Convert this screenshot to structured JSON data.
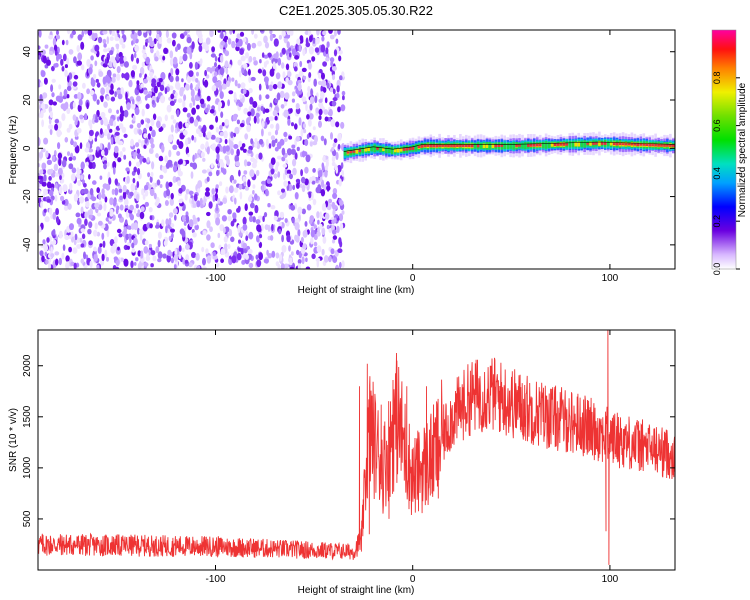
{
  "title": "C2E1.2025.305.05.30.R22",
  "colors": {
    "snr_line": "#ee3333",
    "scatter_fill": "#6a0ee6",
    "ridge_core": "#e8303a"
  },
  "chart_data": [
    {
      "type": "heatmap",
      "xlabel": "Height of straight line (km)",
      "ylabel": "Frequency (Hz)",
      "xlim": [
        -190,
        133
      ],
      "ylim": [
        -50,
        49
      ],
      "xticks": [
        -100,
        0,
        100
      ],
      "yticks": [
        -40,
        -20,
        0,
        20,
        40
      ],
      "colorbar": {
        "label": "Normalized spectral amplitude",
        "range": [
          0,
          1
        ],
        "ticks": [
          "0.0",
          "0.2",
          "0.4",
          "0.6",
          "0.8"
        ]
      },
      "noise_region_x": [
        -190,
        -35
      ],
      "ridge": {
        "x_start": -35,
        "x_end": 133,
        "freq_hz": [
          {
            "x": -35,
            "y": -2
          },
          {
            "x": -20,
            "y": 0
          },
          {
            "x": -10,
            "y": -1
          },
          {
            "x": 0,
            "y": 0
          },
          {
            "x": 5,
            "y": 1
          },
          {
            "x": 50,
            "y": 1
          },
          {
            "x": 95,
            "y": 2
          },
          {
            "x": 133,
            "y": 1
          }
        ]
      }
    },
    {
      "type": "line",
      "xlabel": "Height of straight line (km)",
      "ylabel": "SNR (10 * v/v)",
      "xlim": [
        -190,
        133
      ],
      "ylim": [
        0,
        2350
      ],
      "xticks": [
        -100,
        0,
        100
      ],
      "yticks": [
        500,
        1000,
        1500,
        2000
      ],
      "series": [
        {
          "envelope": [
            {
              "x": -190,
              "y": 250
            },
            {
              "x": -100,
              "y": 230
            },
            {
              "x": -30,
              "y": 180
            },
            {
              "x": -26,
              "y": 300
            },
            {
              "x": -22,
              "y": 1400
            },
            {
              "x": -15,
              "y": 1000
            },
            {
              "x": -8,
              "y": 1500
            },
            {
              "x": 0,
              "y": 900
            },
            {
              "x": 10,
              "y": 1100
            },
            {
              "x": 20,
              "y": 1500
            },
            {
              "x": 30,
              "y": 1700
            },
            {
              "x": 40,
              "y": 1730
            },
            {
              "x": 55,
              "y": 1600
            },
            {
              "x": 70,
              "y": 1500
            },
            {
              "x": 85,
              "y": 1430
            },
            {
              "x": 95,
              "y": 1350
            },
            {
              "x": 100,
              "y": 1300
            },
            {
              "x": 110,
              "y": 1250
            },
            {
              "x": 133,
              "y": 1120
            }
          ],
          "spikes": [
            {
              "x": -23,
              "y": 2020
            },
            {
              "x": -16,
              "y": 1620
            },
            {
              "x": -10,
              "y": 1860
            },
            {
              "x": -8,
              "y": 2050
            },
            {
              "x": -3,
              "y": 1800
            },
            {
              "x": 7,
              "y": 1800
            },
            {
              "x": 99,
              "y": 2400
            }
          ],
          "dips": [
            {
              "x": -27,
              "y": 1800
            },
            {
              "x": -26,
              "y": 180
            },
            {
              "x": -22,
              "y": 350
            },
            {
              "x": -12,
              "y": 500
            },
            {
              "x": 13,
              "y": 700
            },
            {
              "x": 98,
              "y": 380
            },
            {
              "x": 99.5,
              "y": 50
            }
          ]
        }
      ]
    }
  ]
}
